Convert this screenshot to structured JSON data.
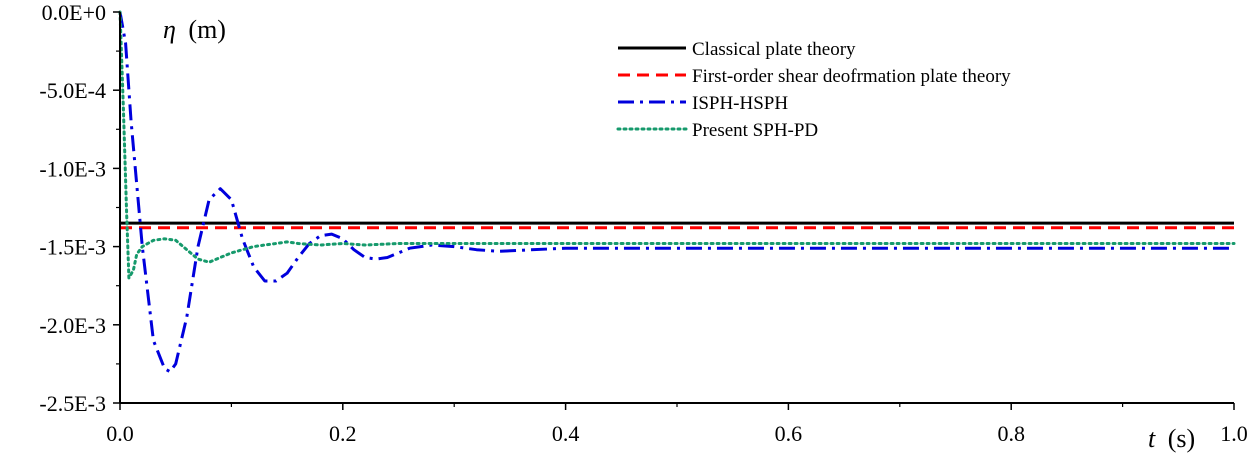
{
  "chart_data": {
    "type": "line",
    "title": "",
    "ylabel_symbol": "η",
    "ylabel_unit": "(m)",
    "xlabel_symbol": "t",
    "xlabel_unit": "(s)",
    "xlim": [
      0,
      1.0
    ],
    "ylim": [
      -0.0025,
      0
    ],
    "x_ticks": [
      0,
      0.2,
      0.4,
      0.6,
      0.8,
      1.0
    ],
    "x_tick_labels": [
      "0.0",
      "0.2",
      "0.4",
      "0.6",
      "0.8",
      "1.0"
    ],
    "y_ticks": [
      0,
      -0.0005,
      -0.001,
      -0.0015,
      -0.002,
      -0.0025
    ],
    "y_tick_labels": [
      "0.0E+0",
      "-5.0E-4",
      "-1.0E-3",
      "-1.5E-3",
      "-2.0E-3",
      "-2.5E-3"
    ],
    "grid": false,
    "legend_position": "top-right",
    "series": [
      {
        "name": "Classical plate theory",
        "color": "#000000",
        "style": "solid",
        "x": [
          0,
          1.0
        ],
        "y": [
          -0.00135,
          -0.00135
        ]
      },
      {
        "name": "First-order shear deofrmation plate theory",
        "color": "#ff0000",
        "style": "dashed",
        "x": [
          0,
          1.0
        ],
        "y": [
          -0.00138,
          -0.00138
        ]
      },
      {
        "name": "ISPH-HSPH",
        "color": "#0000dd",
        "style": "dashdot",
        "x": [
          0,
          0.005,
          0.01,
          0.02,
          0.03,
          0.04,
          0.045,
          0.05,
          0.06,
          0.07,
          0.08,
          0.09,
          0.1,
          0.11,
          0.12,
          0.13,
          0.14,
          0.15,
          0.16,
          0.17,
          0.18,
          0.19,
          0.2,
          0.21,
          0.22,
          0.23,
          0.24,
          0.25,
          0.26,
          0.28,
          0.3,
          0.32,
          0.34,
          0.4,
          0.5,
          0.6,
          0.7,
          0.8,
          0.9,
          1.0
        ],
        "y": [
          0,
          -0.0002,
          -0.0007,
          -0.0015,
          -0.0021,
          -0.00228,
          -0.0023,
          -0.00225,
          -0.00195,
          -0.0015,
          -0.0012,
          -0.00113,
          -0.0012,
          -0.00145,
          -0.00163,
          -0.00172,
          -0.00172,
          -0.00167,
          -0.00157,
          -0.00148,
          -0.00143,
          -0.00142,
          -0.00145,
          -0.00152,
          -0.00157,
          -0.00158,
          -0.00157,
          -0.00154,
          -0.00151,
          -0.00149,
          -0.0015,
          -0.00152,
          -0.00153,
          -0.00151,
          -0.00151,
          -0.00151,
          -0.00151,
          -0.00151,
          -0.00151,
          -0.00151
        ]
      },
      {
        "name": "Present SPH-PD",
        "color": "#169a6c",
        "style": "dotted",
        "x": [
          0,
          0.003,
          0.006,
          0.008,
          0.012,
          0.015,
          0.02,
          0.03,
          0.04,
          0.05,
          0.06,
          0.07,
          0.08,
          0.09,
          0.1,
          0.11,
          0.12,
          0.13,
          0.14,
          0.15,
          0.16,
          0.18,
          0.2,
          0.22,
          0.25,
          0.3,
          0.4,
          0.5,
          0.6,
          0.7,
          0.8,
          0.9,
          1.0
        ],
        "y": [
          0,
          -0.0006,
          -0.0013,
          -0.0017,
          -0.00165,
          -0.00155,
          -0.0015,
          -0.00146,
          -0.00145,
          -0.00146,
          -0.00152,
          -0.00158,
          -0.0016,
          -0.00157,
          -0.00154,
          -0.00152,
          -0.0015,
          -0.00149,
          -0.00148,
          -0.00147,
          -0.00148,
          -0.00149,
          -0.00148,
          -0.00149,
          -0.00148,
          -0.00148,
          -0.00148,
          -0.00148,
          -0.00148,
          -0.00148,
          -0.00148,
          -0.00148,
          -0.00148
        ]
      }
    ]
  }
}
